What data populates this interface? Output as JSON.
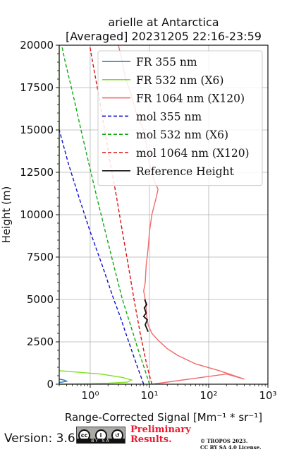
{
  "chart_data": {
    "type": "line",
    "title_line1": "arielle at Antarctica",
    "title_line2": "[Averaged] 20231205 22:16-23:59",
    "ylabel": "Height (m)",
    "xlabel": "Range-Corrected Signal [Mm⁻¹ * sr⁻¹]",
    "xscale": "log",
    "xlim": [
      0.3,
      1000
    ],
    "ylim": [
      0,
      20000
    ],
    "grid": true,
    "legend_position": "top-right",
    "x_ticks": [
      {
        "value": 1,
        "label": "10⁰"
      },
      {
        "value": 10,
        "label": "10¹"
      },
      {
        "value": 100,
        "label": "10²"
      },
      {
        "value": 1000,
        "label": "10³"
      }
    ],
    "y_ticks": [
      0,
      2500,
      5000,
      7500,
      10000,
      12500,
      15000,
      17500,
      20000
    ],
    "series": [
      {
        "name": "FR 355 nm",
        "color": "#1f77b4",
        "style": "solid",
        "points": [
          [
            0.3,
            300
          ],
          [
            0.36,
            250
          ],
          [
            0.4,
            180
          ],
          [
            0.34,
            130
          ],
          [
            0.3,
            110
          ]
        ]
      },
      {
        "name": "FR 532 nm (X6)",
        "color": "#7fe01e",
        "style": "solid",
        "points": [
          [
            0.3,
            800
          ],
          [
            1.5,
            600
          ],
          [
            3.5,
            400
          ],
          [
            5.0,
            250
          ],
          [
            4.2,
            120
          ],
          [
            2.0,
            60
          ],
          [
            0.8,
            20
          ],
          [
            0.3,
            0
          ]
        ],
        "upper_points": [
          [
            0.3,
            12000
          ],
          [
            0.3,
            20000
          ]
        ]
      },
      {
        "name": "FR 1064 nm (X120)",
        "color": "#f06a6a",
        "style": "solid",
        "points": [
          [
            11,
            0
          ],
          [
            60,
            350
          ],
          [
            200,
            600
          ],
          [
            400,
            300
          ],
          [
            150,
            800
          ],
          [
            60,
            1200
          ],
          [
            30,
            1700
          ],
          [
            20,
            2100
          ],
          [
            14,
            2600
          ],
          [
            11,
            3000
          ],
          [
            9.5,
            3500
          ],
          [
            9,
            4000
          ],
          [
            8.8,
            4500
          ],
          [
            8.5,
            5000
          ],
          [
            8,
            5500
          ],
          [
            8.5,
            6000
          ],
          [
            8.8,
            7000
          ],
          [
            9.5,
            8000
          ],
          [
            10,
            9000
          ],
          [
            11,
            10000
          ],
          [
            13,
            11000
          ],
          [
            14,
            11500
          ],
          [
            12,
            12000
          ],
          [
            10,
            13000
          ],
          [
            9,
            14000
          ],
          [
            8,
            15000
          ],
          [
            6,
            16000
          ],
          [
            5,
            17000
          ],
          [
            4,
            18000
          ],
          [
            3.5,
            19000
          ],
          [
            3,
            20000
          ]
        ]
      },
      {
        "name": "mol 355 nm",
        "color": "#1010cc",
        "style": "dashed",
        "points": [
          [
            8,
            0
          ],
          [
            6.3,
            1000
          ],
          [
            5.0,
            2000
          ],
          [
            4.0,
            3000
          ],
          [
            3.2,
            4000
          ],
          [
            2.5,
            5000
          ],
          [
            1.6,
            7000
          ],
          [
            1.0,
            9000
          ],
          [
            0.65,
            11000
          ],
          [
            0.43,
            13000
          ],
          [
            0.3,
            15000
          ]
        ]
      },
      {
        "name": "mol 532 nm (X6)",
        "color": "#10aa10",
        "style": "dashed",
        "points": [
          [
            10,
            0
          ],
          [
            8.1,
            1000
          ],
          [
            6.5,
            2000
          ],
          [
            5.3,
            3000
          ],
          [
            4.3,
            4000
          ],
          [
            3.5,
            5000
          ],
          [
            2.5,
            7000
          ],
          [
            1.8,
            9000
          ],
          [
            1.3,
            11000
          ],
          [
            0.95,
            13000
          ],
          [
            0.7,
            15000
          ],
          [
            0.52,
            17000
          ],
          [
            0.38,
            19000
          ],
          [
            0.33,
            20000
          ]
        ]
      },
      {
        "name": "mol 1064 nm (X120)",
        "color": "#dd1111",
        "style": "dashed",
        "points": [
          [
            11,
            0
          ],
          [
            9.2,
            1000
          ],
          [
            8.0,
            2000
          ],
          [
            7.0,
            3000
          ],
          [
            6.2,
            4000
          ],
          [
            5.5,
            5000
          ],
          [
            4.4,
            7000
          ],
          [
            3.5,
            9000
          ],
          [
            2.8,
            11000
          ],
          [
            2.2,
            13000
          ],
          [
            1.75,
            15000
          ],
          [
            1.4,
            17000
          ],
          [
            1.1,
            19000
          ],
          [
            0.98,
            20000
          ]
        ]
      },
      {
        "name": "Reference Height",
        "color": "#111111",
        "style": "solid",
        "points": [
          [
            9.5,
            3100
          ],
          [
            8.5,
            3500
          ],
          [
            9.2,
            3800
          ],
          [
            8.0,
            4000
          ],
          [
            8.8,
            4200
          ],
          [
            8.2,
            4500
          ],
          [
            9.0,
            4700
          ],
          [
            8.3,
            5000
          ]
        ]
      }
    ]
  },
  "footer": {
    "version": "Version: 3.6",
    "cc_badge_text": "BY SA",
    "preliminary_line1": "Preliminary",
    "preliminary_line2": "Results.",
    "copyright_line1": "© TROPOS 2023.",
    "copyright_line2": "CC BY SA 4.0 License."
  }
}
